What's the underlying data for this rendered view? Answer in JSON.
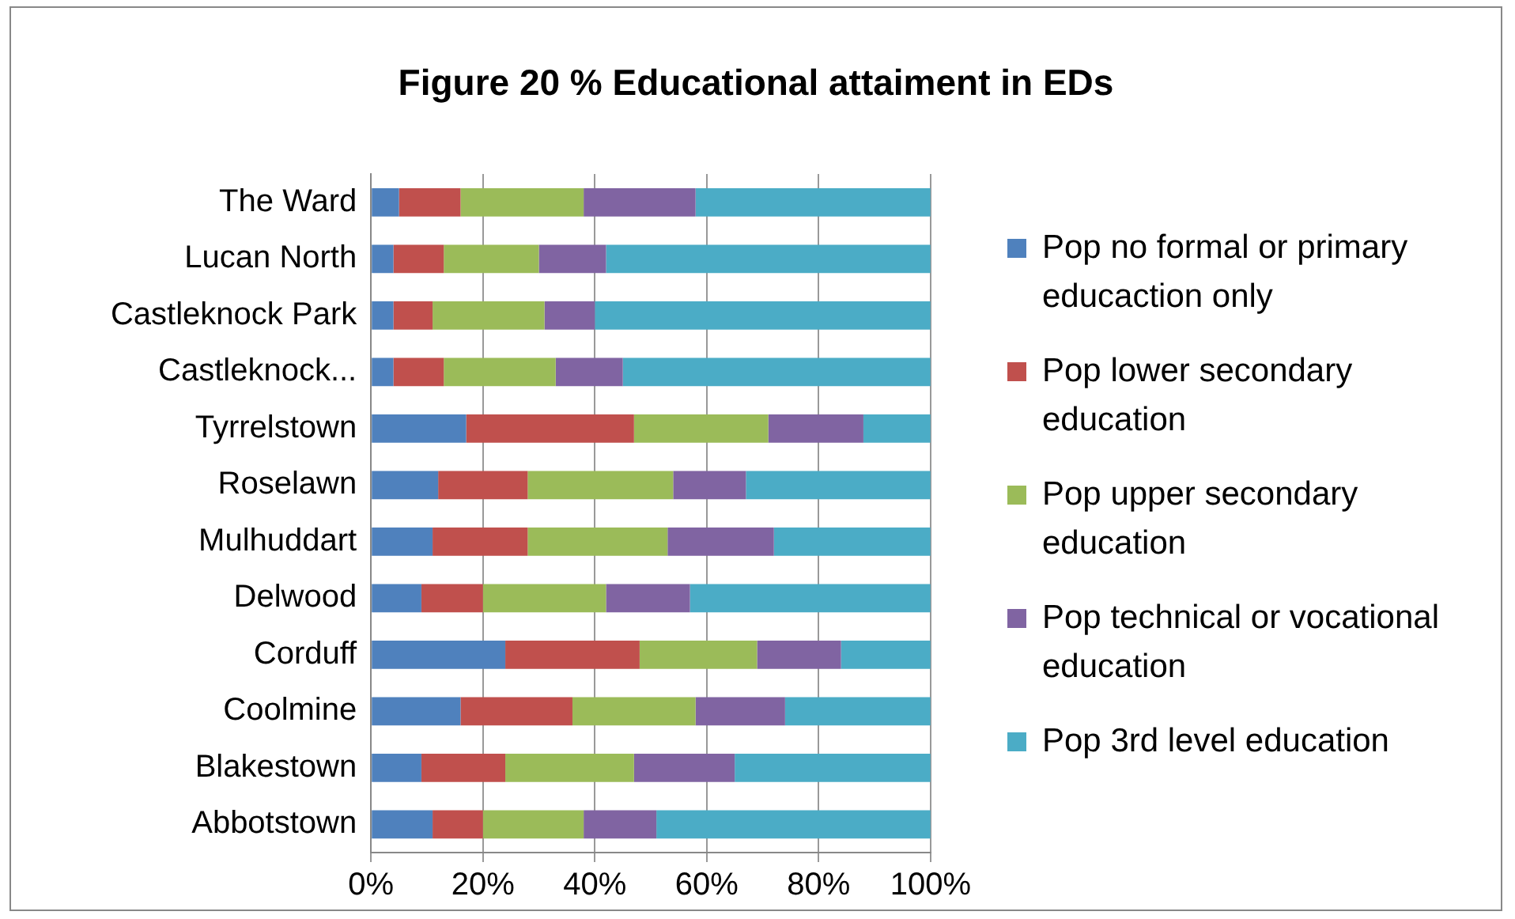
{
  "chart_data": {
    "type": "bar",
    "title": "Figure 20 % Educational attaiment in EDs",
    "orientation": "horizontal",
    "stacked": true,
    "categories": [
      "The Ward",
      "Lucan North",
      "Castleknock Park",
      "Castleknock...",
      "Tyrrelstown",
      "Roselawn",
      "Mulhuddart",
      "Delwood",
      "Corduff",
      "Coolmine",
      "Blakestown",
      "Abbotstown"
    ],
    "series": [
      {
        "name": "Pop no formal or primary educaction only",
        "color": "#4f81bd",
        "values": [
          5,
          4,
          4,
          4,
          17,
          12,
          11,
          9,
          24,
          16,
          9,
          11
        ]
      },
      {
        "name": "Pop lower secondary education",
        "color": "#c0504d",
        "values": [
          11,
          9,
          7,
          9,
          30,
          16,
          17,
          11,
          24,
          20,
          15,
          9
        ]
      },
      {
        "name": "Pop upper secondary education",
        "color": "#9bbb59",
        "values": [
          22,
          17,
          20,
          20,
          24,
          26,
          25,
          22,
          21,
          22,
          23,
          18
        ]
      },
      {
        "name": "Pop technical or vocational education",
        "color": "#8064a2",
        "values": [
          20,
          12,
          9,
          12,
          17,
          13,
          19,
          15,
          15,
          16,
          18,
          13
        ]
      },
      {
        "name": "Pop 3rd level education",
        "color": "#4bacc6",
        "values": [
          42,
          58,
          60,
          55,
          12,
          33,
          28,
          43,
          16,
          26,
          35,
          49
        ]
      }
    ],
    "xlim": [
      0,
      100
    ],
    "xticks": [
      {
        "value": 0,
        "label": "0%"
      },
      {
        "value": 20,
        "label": "20%"
      },
      {
        "value": 40,
        "label": "40%"
      },
      {
        "value": 60,
        "label": "60%"
      },
      {
        "value": 80,
        "label": "80%"
      },
      {
        "value": 100,
        "label": "100%"
      }
    ],
    "grid": "x",
    "legend": "right"
  }
}
